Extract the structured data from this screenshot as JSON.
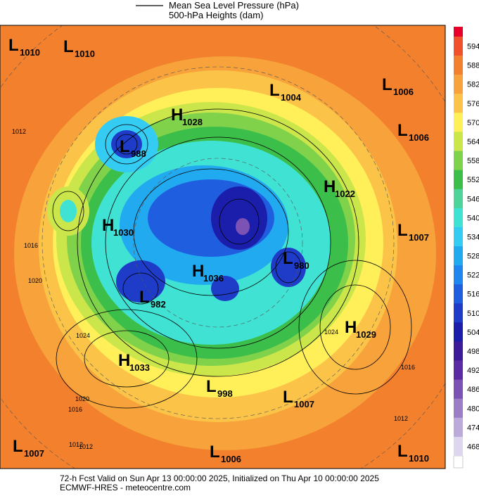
{
  "header": {
    "legend_line1": "Mean Sea Level Pressure (hPa)",
    "legend_line2": "500-hPa Heights (dam)"
  },
  "centers": [
    {
      "type": "L",
      "value": "1010"
    },
    {
      "type": "L",
      "value": "1010"
    },
    {
      "type": "L",
      "value": "1004"
    },
    {
      "type": "L",
      "value": "1006"
    },
    {
      "type": "H",
      "value": "1028"
    },
    {
      "type": "L",
      "value": "1006"
    },
    {
      "type": "L",
      "value": "988"
    },
    {
      "type": "H",
      "value": "1022"
    },
    {
      "type": "H",
      "value": "1030"
    },
    {
      "type": "L",
      "value": "1007"
    },
    {
      "type": "L",
      "value": "980"
    },
    {
      "type": "H",
      "value": "1036"
    },
    {
      "type": "L",
      "value": "982"
    },
    {
      "type": "H",
      "value": "1029"
    },
    {
      "type": "H",
      "value": "1033"
    },
    {
      "type": "L",
      "value": "998"
    },
    {
      "type": "L",
      "value": "1007"
    },
    {
      "type": "L",
      "value": "1007"
    },
    {
      "type": "L",
      "value": "1006"
    },
    {
      "type": "L",
      "value": "1010"
    }
  ],
  "isobar_labels": [
    "1012",
    "1016",
    "1024",
    "1020",
    "1012",
    "1016",
    "1020",
    "1024",
    "1016",
    "1012",
    "1012"
  ],
  "colorbar": [
    {
      "label": "594",
      "color": "#f0502a"
    },
    {
      "label": "588",
      "color": "#f3802c"
    },
    {
      "label": "582",
      "color": "#f7a23a"
    },
    {
      "label": "576",
      "color": "#fbc448"
    },
    {
      "label": "570",
      "color": "#fff05a"
    },
    {
      "label": "564",
      "color": "#cbe64a"
    },
    {
      "label": "558",
      "color": "#7fd24a"
    },
    {
      "label": "552",
      "color": "#3cbe4a"
    },
    {
      "label": "546",
      "color": "#4cd49a"
    },
    {
      "label": "540",
      "color": "#40e2d4"
    },
    {
      "label": "534",
      "color": "#34ccf2"
    },
    {
      "label": "528",
      "color": "#22aaf0"
    },
    {
      "label": "522",
      "color": "#1e86ee"
    },
    {
      "label": "516",
      "color": "#205ee0"
    },
    {
      "label": "510",
      "color": "#1e3cc8"
    },
    {
      "label": "504",
      "color": "#1a1eaa"
    },
    {
      "label": "498",
      "color": "#3c1a98"
    },
    {
      "label": "492",
      "color": "#5c2aa2"
    },
    {
      "label": "486",
      "color": "#7c52b4"
    },
    {
      "label": "480",
      "color": "#9c7ec6"
    },
    {
      "label": "474",
      "color": "#bcaada"
    },
    {
      "label": "468",
      "color": "#ddd6ee"
    }
  ],
  "footer": {
    "line1": "72-h Fcst Valid on Sun Apr 13 00:00:00 2025, Initialized on Thu Apr 10 00:00:00 2025",
    "line2": "ECMWF-HRES  - meteocentre.com"
  }
}
